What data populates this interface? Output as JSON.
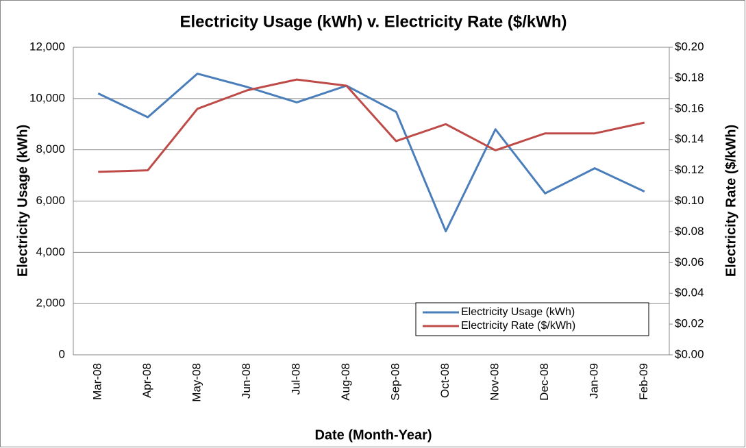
{
  "chart_data": {
    "type": "line",
    "title": "Electricity Usage (kWh) v. Electricity Rate ($/kWh)",
    "x_label": "Date (Month-Year)",
    "y_label": "Electricity Usage (kWh)",
    "y2_label": "Electricity Rate ($/kWh)",
    "categories": [
      "Mar-08",
      "Apr-08",
      "May-08",
      "Jun-08",
      "Jul-08",
      "Aug-08",
      "Sep-08",
      "Oct-08",
      "Nov-08",
      "Dec-08",
      "Jan-09",
      "Feb-09"
    ],
    "series": [
      {
        "name": "Electricity Usage (kWh)",
        "color": "#4a7ebb",
        "values": [
          10200,
          9270,
          10970,
          10450,
          9850,
          10500,
          9480,
          4820,
          8800,
          6300,
          7280,
          6370
        ]
      },
      {
        "name": "Electricity Rate ($/kWh)",
        "color": "#be4b48",
        "axis": "y2",
        "values": [
          0.119,
          0.12,
          0.16,
          0.172,
          0.179,
          0.175,
          0.139,
          0.15,
          0.133,
          0.144,
          0.144,
          0.151
        ]
      }
    ],
    "ylim": [
      0,
      12000
    ],
    "yticks": [
      0,
      {
        "value": 2000,
        "label": "2,000"
      },
      {
        "value": 4000,
        "label": "4,000"
      },
      {
        "value": 6000,
        "label": "6,000"
      },
      {
        "value": 8000,
        "label": "8,000"
      },
      {
        "value": 10000,
        "label": "10,000"
      },
      {
        "value": 12000,
        "label": "12,000"
      }
    ],
    "y2lim": [
      0,
      0.2
    ],
    "y2ticks": [
      {
        "value": 0,
        "label": "$0.00"
      },
      {
        "value": 0.02,
        "label": "$0.02"
      },
      {
        "value": 0.04,
        "label": "$0.04"
      },
      {
        "value": 0.06,
        "label": "$0.06"
      },
      {
        "value": 0.08,
        "label": "$0.08"
      },
      {
        "value": 0.1,
        "label": "$0.10"
      },
      {
        "value": 0.12,
        "label": "$0.12"
      },
      {
        "value": 0.14,
        "label": "$0.14"
      },
      {
        "value": 0.16,
        "label": "$0.16"
      },
      {
        "value": 0.18,
        "label": "$0.18"
      },
      {
        "value": 0.2,
        "label": "$0.20"
      }
    ],
    "grid": true,
    "legend": "lower right"
  }
}
